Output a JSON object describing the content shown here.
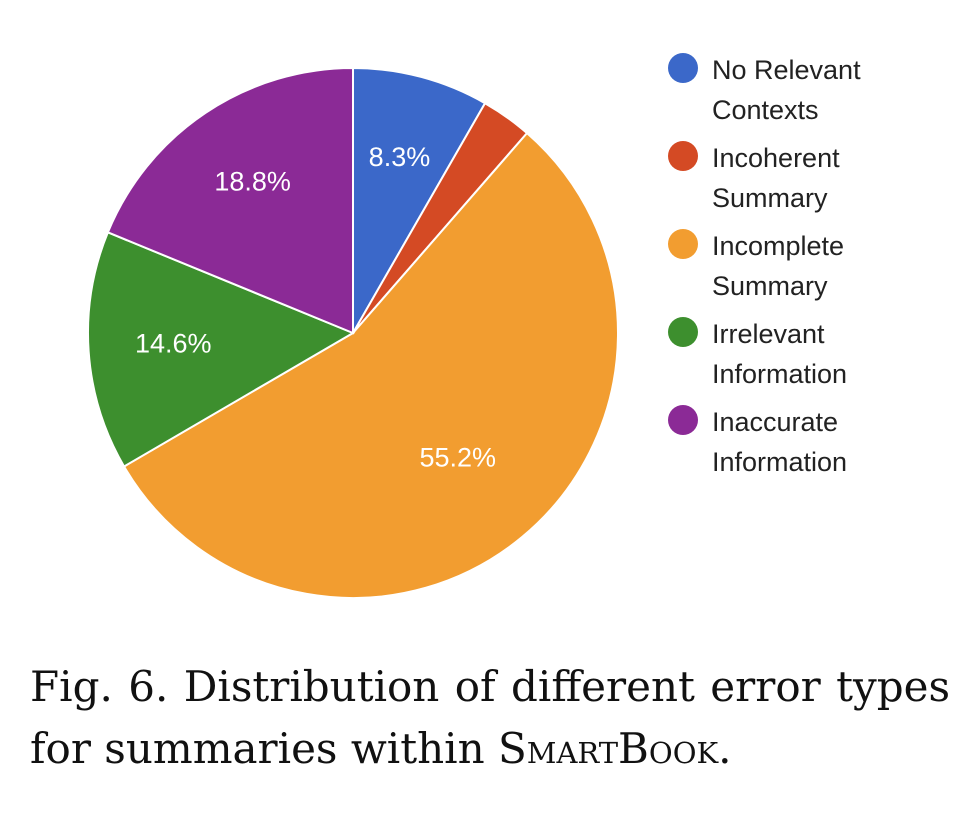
{
  "chart_data": {
    "type": "pie",
    "categories": [
      "No Relevant Contexts",
      "Incoherent Summary",
      "Incomplete Summary",
      "Irrelevant Information",
      "Inaccurate Information"
    ],
    "values": [
      8.3,
      3.1,
      55.2,
      14.6,
      18.8
    ],
    "slice_labels": [
      "8.3%",
      "",
      "55.2%",
      "14.6%",
      "18.8%"
    ],
    "colors": [
      "#3b68c9",
      "#d44a24",
      "#f29d30",
      "#3d8f2e",
      "#8b2a96"
    ],
    "start_angle": "12 o'clock",
    "direction": "clockwise",
    "legend_placement": "right"
  },
  "legend": [
    {
      "label": "No Relevant Contexts",
      "color": "#3b68c9"
    },
    {
      "label": "Incoherent Summary",
      "color": "#d44a24"
    },
    {
      "label": "Incomplete Summary",
      "color": "#f29d30"
    },
    {
      "label": "Irrelevant Information",
      "color": "#3d8f2e"
    },
    {
      "label": "Inaccurate Information",
      "color": "#8b2a96"
    }
  ],
  "caption": {
    "text": "Fig. 6. Distribution of different error types for summaries within",
    "product": "SmartBook",
    "end": "."
  }
}
